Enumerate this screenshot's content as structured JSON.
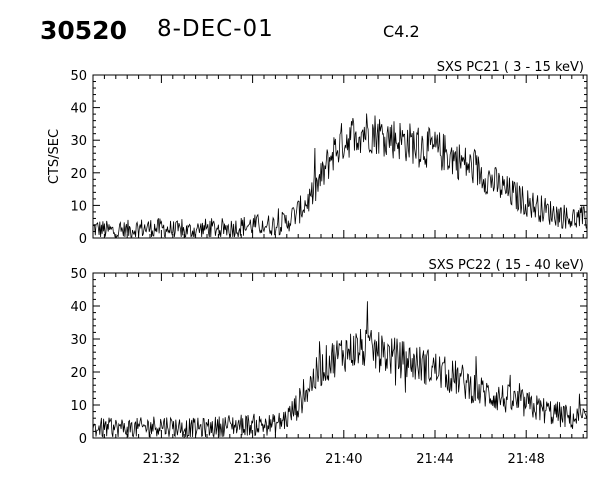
{
  "header": {
    "event_id": "30520",
    "date": "8-DEC-01",
    "flare_class": "C4.2"
  },
  "chart_data": [
    {
      "type": "line",
      "title": "SXS PC21  (  3 - 15 keV)",
      "ylabel": "CTS/SEC",
      "xlabel": "",
      "xlim": [
        "21:29:00",
        "21:50:40"
      ],
      "ylim": [
        0,
        50
      ],
      "yticks": [
        0,
        10,
        20,
        30,
        40,
        50
      ],
      "xticks": [
        "21:32",
        "21:36",
        "21:40",
        "21:44",
        "21:48"
      ],
      "x_tick_labels_shown": false,
      "grid": false,
      "series": [
        {
          "x": [
            "21:29:00",
            "21:30:00",
            "21:31:00",
            "21:32:00",
            "21:33:00",
            "21:34:00",
            "21:35:00",
            "21:36:00",
            "21:37:00",
            "21:37:30",
            "21:38:00",
            "21:38:30",
            "21:39:00",
            "21:39:30",
            "21:40:00",
            "21:40:30",
            "21:41:00",
            "21:41:30",
            "21:42:00",
            "21:42:30",
            "21:43:00",
            "21:43:30",
            "21:44:00",
            "21:44:30",
            "21:45:00",
            "21:45:30",
            "21:46:00",
            "21:47:00",
            "21:48:00",
            "21:49:00",
            "21:50:00",
            "21:50:40"
          ],
          "y": [
            3,
            2,
            3,
            3,
            2,
            3,
            3,
            4,
            4,
            5,
            8,
            12,
            18,
            26,
            30,
            32,
            33,
            32,
            31,
            30,
            29,
            28,
            27,
            26,
            24,
            22,
            20,
            15,
            11,
            8,
            6,
            6
          ]
        }
      ]
    },
    {
      "type": "line",
      "title": "SXS PC22  ( 15 - 40 keV)",
      "ylabel": "",
      "xlabel": "",
      "xlim": [
        "21:29:00",
        "21:50:40"
      ],
      "ylim": [
        0,
        50
      ],
      "yticks": [
        0,
        10,
        20,
        30,
        40,
        50
      ],
      "xticks": [
        "21:32",
        "21:36",
        "21:40",
        "21:44",
        "21:48"
      ],
      "x_tick_labels_shown": true,
      "grid": false,
      "series": [
        {
          "x": [
            "21:29:00",
            "21:30:00",
            "21:31:00",
            "21:32:00",
            "21:33:00",
            "21:34:00",
            "21:35:00",
            "21:36:00",
            "21:37:00",
            "21:37:30",
            "21:38:00",
            "21:38:30",
            "21:39:00",
            "21:39:30",
            "21:40:00",
            "21:40:30",
            "21:41:00",
            "21:41:30",
            "21:42:00",
            "21:42:30",
            "21:43:00",
            "21:43:30",
            "21:44:00",
            "21:44:30",
            "21:45:00",
            "21:45:30",
            "21:46:00",
            "21:47:00",
            "21:48:00",
            "21:49:00",
            "21:50:00",
            "21:50:40"
          ],
          "y": [
            3,
            3,
            3,
            4,
            3,
            3,
            4,
            4,
            4,
            6,
            10,
            16,
            21,
            24,
            26,
            27,
            27,
            26,
            25,
            24,
            23,
            22,
            21,
            19,
            18,
            16,
            14,
            12,
            10,
            8,
            6,
            6
          ]
        }
      ]
    }
  ]
}
